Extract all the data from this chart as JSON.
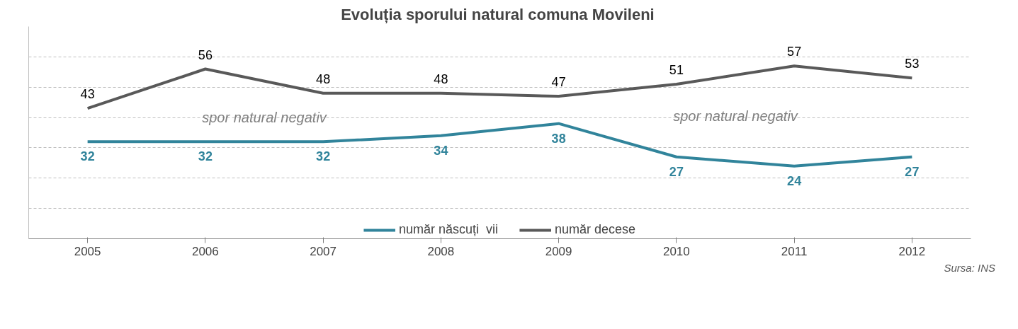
{
  "chart_data": {
    "type": "line",
    "title": "Evoluția sporului natural comuna  Movileni",
    "categories": [
      "2005",
      "2006",
      "2007",
      "2008",
      "2009",
      "2010",
      "2011",
      "2012"
    ],
    "series": [
      {
        "name": "număr născuți  vii",
        "color": "#31849b",
        "values": [
          32,
          32,
          32,
          34,
          38,
          27,
          24,
          27
        ]
      },
      {
        "name": "număr decese",
        "color": "#595959",
        "values": [
          43,
          56,
          48,
          48,
          47,
          51,
          57,
          53
        ]
      }
    ],
    "ylim": [
      0,
      70
    ],
    "tick_labels": "x",
    "grid": "y",
    "legend": "bottom",
    "data_labels": true,
    "marker": "none",
    "line_style": "solid",
    "annotations": [
      "spor natural negativ",
      "spor natural negativ",
      "Sursa: INS"
    ]
  }
}
